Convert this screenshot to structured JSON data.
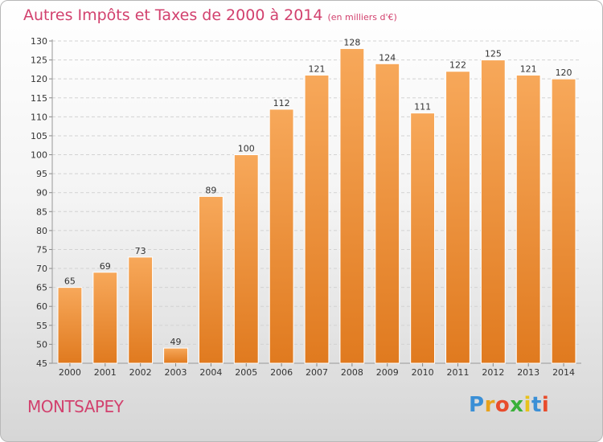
{
  "chart_data": {
    "type": "bar",
    "title": "Autres Impôts et Taxes de 2000 à 2014",
    "subtitle": "(en milliers d'€)",
    "categories": [
      "2000",
      "2001",
      "2002",
      "2003",
      "2004",
      "2005",
      "2006",
      "2007",
      "2008",
      "2009",
      "2010",
      "2011",
      "2012",
      "2013",
      "2014"
    ],
    "values": [
      65,
      69,
      73,
      49,
      89,
      100,
      112,
      121,
      128,
      124,
      111,
      122,
      125,
      121,
      120
    ],
    "ylim": [
      45,
      130
    ],
    "yticks": [
      45,
      50,
      55,
      60,
      65,
      70,
      75,
      80,
      85,
      90,
      95,
      100,
      105,
      110,
      115,
      120,
      125,
      130
    ],
    "grid": true,
    "bar_color_top": "#f7a85a",
    "bar_color_bottom": "#e07a1f",
    "title_color": "#d2416e"
  },
  "location": "MONTSAPEY",
  "logo": {
    "letters": [
      "P",
      "r",
      "o",
      "x",
      "i",
      "t",
      "i"
    ],
    "colors": [
      "#3a8fd6",
      "#e8a21c",
      "#e84c2c",
      "#3ab03a",
      "#e8c21c",
      "#3a8fd6",
      "#e84c2c"
    ]
  }
}
